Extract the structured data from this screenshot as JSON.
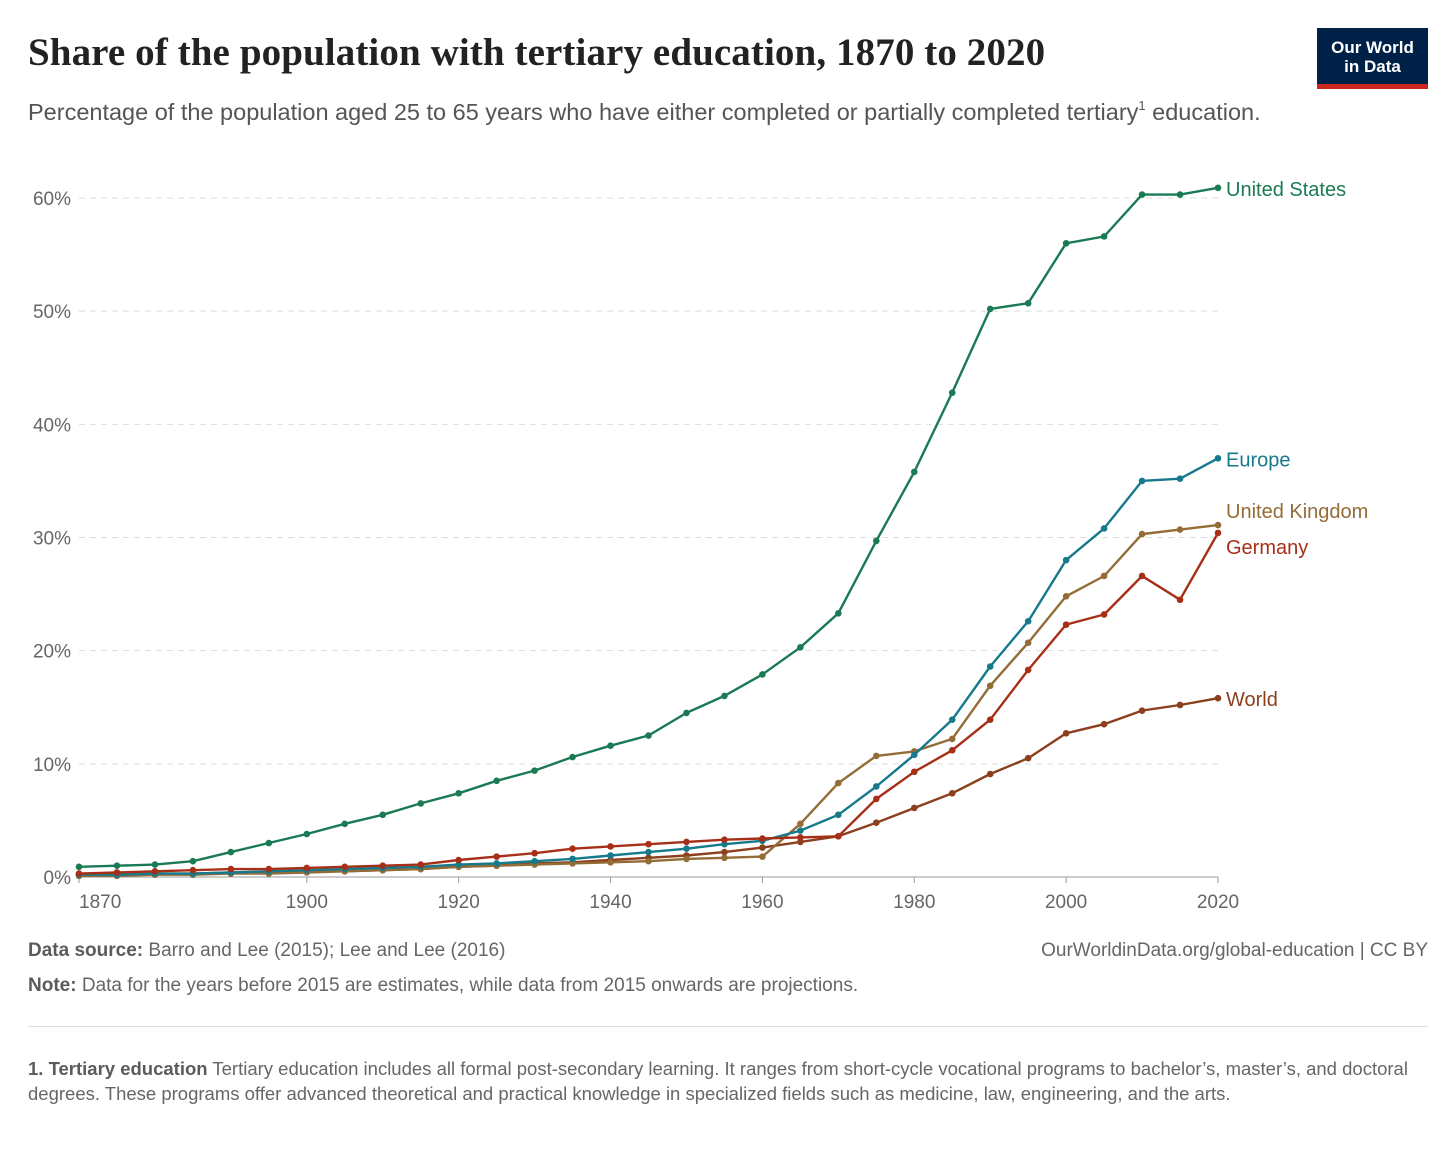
{
  "header": {
    "title": "Share of the population with tertiary education, 1870 to 2020",
    "subtitle": "Percentage of the population aged 25 to 65 years who have either completed or partially completed tertiary",
    "subtitle_sup": "1",
    "subtitle_end": "education.",
    "logo_line1": "Our World",
    "logo_line2": "in Data"
  },
  "footer": {
    "source_label": "Data source:",
    "source_text": "Barro and Lee (2015); Lee and Lee (2016)",
    "url_text": "OurWorldinData.org/global-education | CC BY",
    "note_label": "Note:",
    "note_text": "Data for the years before 2015 are estimates, while data from 2015 onwards are projections.",
    "footnote_label": "1. Tertiary education",
    "footnote_text": "Tertiary education includes all formal post-secondary learning. It ranges from short-cycle vocational programs to bachelor’s, master’s, and doctoral degrees. These programs offer advanced theoretical and practical knowledge in specialized fields such as medicine, law, engineering, and the arts."
  },
  "chart_data": {
    "type": "line",
    "title": "Share of the population with tertiary education, 1870 to 2020",
    "xlabel": "",
    "ylabel": "",
    "xlim": [
      1870,
      2020
    ],
    "ylim": [
      0,
      60
    ],
    "x_ticks": [
      "1870",
      "1900",
      "1920",
      "1940",
      "1960",
      "1980",
      "2000",
      "2020"
    ],
    "x_tick_values": [
      1870,
      1900,
      1920,
      1940,
      1960,
      1980,
      2000,
      2020
    ],
    "y_ticks": [
      "0%",
      "10%",
      "20%",
      "30%",
      "40%",
      "50%",
      "60%"
    ],
    "y_tick_values": [
      0,
      10,
      20,
      30,
      40,
      50,
      60
    ],
    "grid": "horizontal dashed",
    "legend": "labels at line ends (right)",
    "x": [
      1870,
      1875,
      1880,
      1885,
      1890,
      1895,
      1900,
      1905,
      1910,
      1915,
      1920,
      1925,
      1930,
      1935,
      1940,
      1945,
      1950,
      1955,
      1960,
      1965,
      1970,
      1975,
      1980,
      1985,
      1990,
      1995,
      2000,
      2005,
      2010,
      2015,
      2020
    ],
    "series": [
      {
        "name": "United States",
        "color": "#1a7a53",
        "values": [
          0.9,
          1.0,
          1.1,
          1.4,
          2.2,
          3.0,
          3.8,
          4.7,
          5.5,
          6.5,
          7.4,
          8.5,
          9.4,
          10.6,
          11.6,
          12.5,
          14.5,
          16.0,
          17.9,
          20.3,
          23.3,
          29.7,
          35.8,
          42.8,
          50.2,
          50.7,
          56.0,
          56.6,
          60.3,
          60.3,
          60.9
        ]
      },
      {
        "name": "Europe",
        "color": "#167a8c",
        "values": [
          0.2,
          0.2,
          0.3,
          0.3,
          0.4,
          0.5,
          0.6,
          0.7,
          0.8,
          0.9,
          1.1,
          1.2,
          1.4,
          1.6,
          1.9,
          2.2,
          2.5,
          2.9,
          3.2,
          4.1,
          5.5,
          8.0,
          10.8,
          13.9,
          18.6,
          22.6,
          28.0,
          30.8,
          35.0,
          35.2,
          37.0
        ]
      },
      {
        "name": "United Kingdom",
        "color": "#946c37",
        "values": [
          0.1,
          0.1,
          0.2,
          0.2,
          0.3,
          0.3,
          0.4,
          0.5,
          0.6,
          0.7,
          0.9,
          1.0,
          1.1,
          1.2,
          1.3,
          1.4,
          1.6,
          1.7,
          1.8,
          4.7,
          8.3,
          10.7,
          11.1,
          12.2,
          16.9,
          20.7,
          24.8,
          26.6,
          30.3,
          30.7,
          31.1
        ]
      },
      {
        "name": "Germany",
        "color": "#a72f17",
        "values": [
          0.3,
          0.4,
          0.5,
          0.6,
          0.7,
          0.7,
          0.8,
          0.9,
          1.0,
          1.1,
          1.5,
          1.8,
          2.1,
          2.5,
          2.7,
          2.9,
          3.1,
          3.3,
          3.4,
          3.5,
          3.6,
          6.9,
          9.3,
          11.2,
          13.9,
          18.3,
          22.3,
          23.2,
          26.6,
          24.5,
          30.4
        ]
      },
      {
        "name": "World",
        "color": "#8c3f1d",
        "values": [
          0.2,
          0.2,
          0.3,
          0.3,
          0.4,
          0.4,
          0.5,
          0.5,
          0.6,
          0.7,
          0.9,
          1.0,
          1.2,
          1.3,
          1.5,
          1.7,
          1.9,
          2.2,
          2.6,
          3.1,
          3.6,
          4.8,
          6.1,
          7.4,
          9.1,
          10.5,
          12.7,
          13.5,
          14.7,
          15.2,
          15.8
        ]
      }
    ]
  }
}
